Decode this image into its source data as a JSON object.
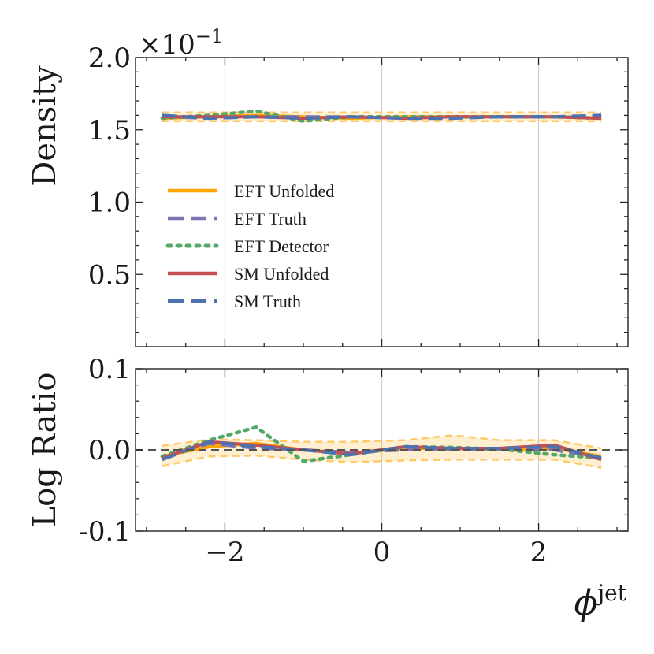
{
  "chart_data": [
    {
      "panel": "top",
      "type": "line",
      "ylabel": "Density",
      "offset_text": "×10",
      "offset_exponent": "−1",
      "ylim": [
        0.0,
        2.0
      ],
      "yticks": [
        0.5,
        1.0,
        1.5,
        2.0
      ],
      "ytick_labels": [
        "0.5",
        "1.0",
        "1.5",
        "2.0"
      ],
      "xlim": [
        -3.14,
        3.14
      ],
      "x": [
        -2.8,
        -2.2,
        -1.6,
        -1.0,
        -0.4,
        0.3,
        0.9,
        1.5,
        2.2,
        2.8
      ],
      "band_lower": [
        1.56,
        1.56,
        1.56,
        1.56,
        1.56,
        1.56,
        1.56,
        1.56,
        1.56,
        1.56
      ],
      "band_upper": [
        1.62,
        1.62,
        1.62,
        1.62,
        1.62,
        1.62,
        1.62,
        1.62,
        1.62,
        1.62
      ],
      "series": [
        {
          "name": "EFT Unfolded",
          "style": "solid",
          "color": "#FFA500",
          "values": [
            1.58,
            1.59,
            1.6,
            1.59,
            1.58,
            1.59,
            1.59,
            1.59,
            1.59,
            1.58
          ]
        },
        {
          "name": "EFT Truth",
          "style": "dashed",
          "color": "#8172B3",
          "values": [
            1.59,
            1.58,
            1.59,
            1.59,
            1.59,
            1.58,
            1.58,
            1.59,
            1.59,
            1.59
          ]
        },
        {
          "name": "EFT Detector",
          "style": "dotted",
          "color": "#55A868",
          "values": [
            1.58,
            1.6,
            1.63,
            1.56,
            1.59,
            1.59,
            1.59,
            1.59,
            1.59,
            1.58
          ]
        },
        {
          "name": "SM Unfolded",
          "style": "solid",
          "color": "#C44E52",
          "values": [
            1.59,
            1.59,
            1.59,
            1.58,
            1.59,
            1.58,
            1.59,
            1.59,
            1.59,
            1.58
          ]
        },
        {
          "name": "SM Truth",
          "style": "dashed",
          "color": "#4C72B0",
          "values": [
            1.6,
            1.58,
            1.59,
            1.58,
            1.59,
            1.58,
            1.58,
            1.59,
            1.59,
            1.6
          ]
        }
      ]
    },
    {
      "panel": "bottom",
      "type": "line",
      "ylabel": "Log Ratio",
      "xlabel_base": "ϕ",
      "xlabel_sup": "jet",
      "ylim": [
        -0.1,
        0.1
      ],
      "yticks": [
        -0.1,
        0.0,
        0.1
      ],
      "ytick_labels": [
        "-0.1",
        "0.0",
        "0.1"
      ],
      "xlim": [
        -3.14,
        3.14
      ],
      "xticks": [
        -2,
        0,
        2
      ],
      "xtick_labels": [
        "−2",
        "0",
        "2"
      ],
      "x": [
        -2.8,
        -2.2,
        -1.6,
        -1.0,
        -0.4,
        0.3,
        0.9,
        1.5,
        2.2,
        2.8
      ],
      "band_lower": [
        -0.02,
        -0.008,
        -0.007,
        -0.012,
        -0.015,
        -0.013,
        -0.012,
        -0.012,
        -0.012,
        -0.022
      ],
      "band_upper": [
        0.005,
        0.013,
        0.012,
        0.01,
        0.01,
        0.012,
        0.018,
        0.012,
        0.012,
        0.002
      ],
      "series": [
        {
          "name": "EFT Unfolded",
          "style": "solid",
          "color": "#FFA500",
          "values": [
            -0.008,
            0.004,
            0.008,
            0.0,
            -0.004,
            0.002,
            0.002,
            0.0,
            0.002,
            -0.008
          ]
        },
        {
          "name": "EFT Truth",
          "style": "dashed",
          "color": "#8172B3",
          "values": [
            -0.01,
            0.008,
            0.002,
            0.0,
            -0.003,
            0.0,
            0.001,
            0.0,
            0.0,
            -0.01
          ]
        },
        {
          "name": "EFT Detector",
          "style": "dotted",
          "color": "#55A868",
          "values": [
            -0.008,
            0.012,
            0.028,
            -0.014,
            -0.006,
            0.004,
            0.003,
            0.001,
            -0.006,
            -0.01
          ]
        },
        {
          "name": "SM Unfolded",
          "style": "solid",
          "color": "#C44E52",
          "values": [
            -0.01,
            0.01,
            0.006,
            0.0,
            -0.005,
            0.004,
            0.002,
            0.002,
            0.006,
            -0.012
          ]
        },
        {
          "name": "SM Truth",
          "style": "dashed",
          "color": "#4C72B0",
          "values": [
            -0.012,
            0.01,
            0.004,
            0.0,
            -0.006,
            0.004,
            0.002,
            0.002,
            0.004,
            -0.01
          ]
        },
        {
          "name": "reference",
          "style": "dashed",
          "color": "#555555",
          "values": [
            0,
            0,
            0,
            0,
            0,
            0,
            0,
            0,
            0,
            0
          ]
        }
      ]
    }
  ]
}
